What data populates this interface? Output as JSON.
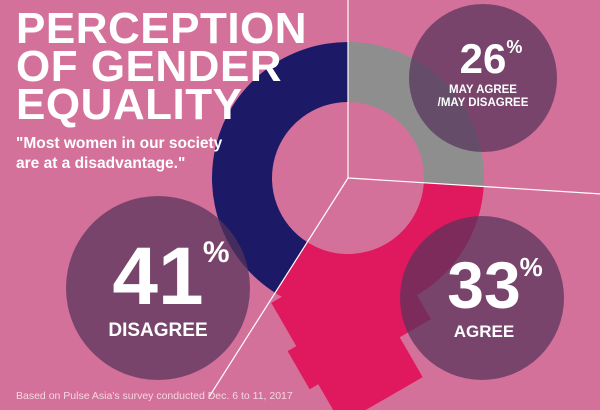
{
  "title": "PERCEPTION\nOF GENDER\nEQUALITY",
  "subtitle": "\"Most women in our society\nare at a disadvantage.\"",
  "source": "Based on Pulse Asia's survey conducted Dec. 6 to 11, 2017",
  "colors": {
    "background": "#d4719a",
    "disagree": "#1c1a66",
    "agree": "#e0185e",
    "may_agree": "#8e8e8e",
    "bubble": "#56335a"
  },
  "chart_data": {
    "type": "pie",
    "variant": "donut styled as a female (Venus) symbol",
    "title": "PERCEPTION OF GENDER EQUALITY",
    "subtitle": "\"Most women in our society are at a disadvantage.\"",
    "unit": "%",
    "slices": [
      {
        "label": "MAY AGREE /MAY DISAGREE",
        "value": 26,
        "color": "#8e8e8e"
      },
      {
        "label": "AGREE",
        "value": 33,
        "color": "#e0185e"
      },
      {
        "label": "DISAGREE",
        "value": 41,
        "color": "#1c1a66"
      }
    ]
  },
  "labels": {
    "disagree": {
      "value": "41",
      "unit": "%",
      "label": "DISAGREE"
    },
    "agree": {
      "value": "33",
      "unit": "%",
      "label": "AGREE"
    },
    "may_agree": {
      "value": "26",
      "unit": "%",
      "label": "MAY AGREE\n/MAY DISAGREE"
    }
  }
}
